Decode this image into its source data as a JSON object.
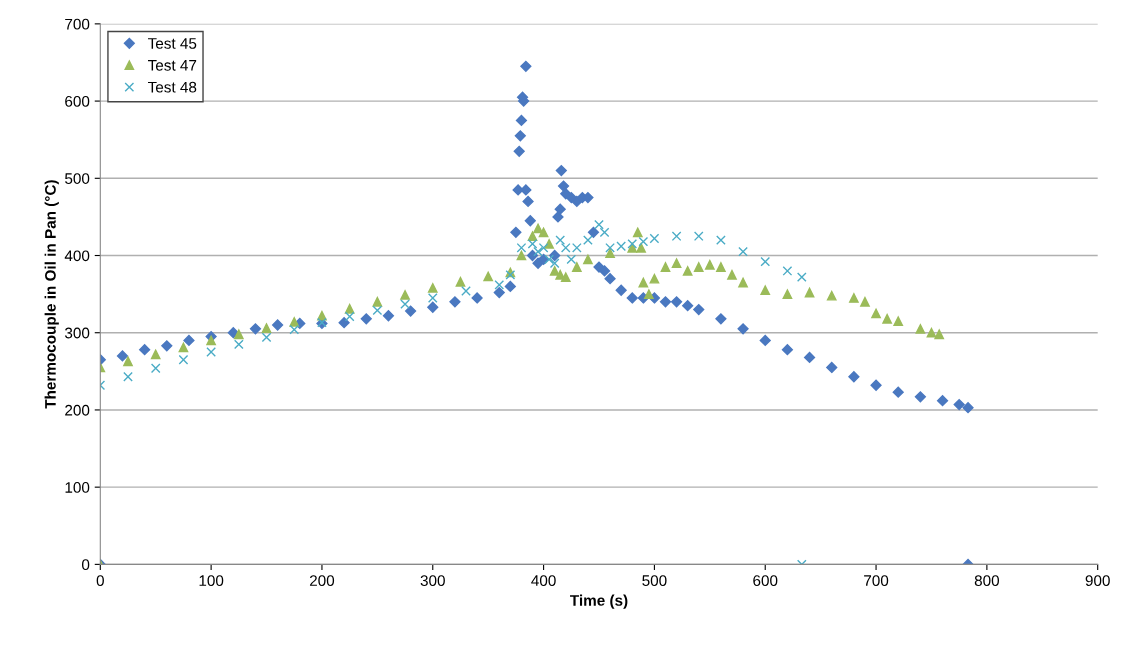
{
  "chart_data": {
    "type": "scatter",
    "xlabel": "Time (s)",
    "ylabel": "Thermocouple in Oil in Pan (°C)",
    "xlim": [
      0,
      900
    ],
    "xticks": [
      0,
      100,
      200,
      300,
      400,
      500,
      600,
      700,
      800,
      900
    ],
    "ylim": [
      0,
      700
    ],
    "yticks": [
      0,
      100,
      200,
      300,
      400,
      500,
      600,
      700
    ],
    "grid": "y",
    "legend": "top left",
    "series": [
      {
        "name": "Test 45",
        "color": "#4a78c0",
        "marker": "diamond",
        "x": [
          0,
          20,
          40,
          60,
          80,
          100,
          120,
          140,
          160,
          180,
          200,
          220,
          240,
          260,
          280,
          300,
          320,
          340,
          360,
          370,
          375,
          377,
          378,
          379,
          380,
          381,
          382,
          384,
          384,
          386,
          388,
          390,
          395,
          400,
          410,
          413,
          415,
          416,
          418,
          420,
          425,
          430,
          435,
          440,
          445,
          450,
          455,
          460,
          470,
          480,
          490,
          500,
          510,
          520,
          530,
          540,
          560,
          580,
          600,
          620,
          640,
          660,
          680,
          700,
          720,
          740,
          760,
          775,
          783,
          0,
          783
        ],
        "values": [
          265,
          270,
          278,
          283,
          290,
          295,
          300,
          305,
          310,
          312,
          312,
          313,
          318,
          322,
          328,
          333,
          340,
          345,
          352,
          360,
          430,
          485,
          535,
          555,
          575,
          605,
          600,
          645,
          485,
          470,
          445,
          400,
          390,
          395,
          400,
          450,
          460,
          510,
          490,
          480,
          475,
          470,
          475,
          475,
          430,
          385,
          380,
          370,
          355,
          345,
          345,
          345,
          340,
          340,
          335,
          330,
          318,
          305,
          290,
          278,
          268,
          255,
          243,
          232,
          223,
          217,
          212,
          207,
          203,
          0,
          0
        ]
      },
      {
        "name": "Test 47",
        "color": "#9bbb59",
        "marker": "triangle",
        "x": [
          0,
          25,
          50,
          75,
          100,
          125,
          150,
          175,
          200,
          225,
          250,
          275,
          300,
          325,
          350,
          370,
          380,
          390,
          395,
          400,
          405,
          410,
          415,
          420,
          430,
          440,
          460,
          480,
          485,
          488,
          490,
          495,
          500,
          510,
          520,
          530,
          540,
          550,
          560,
          570,
          580,
          600,
          620,
          640,
          660,
          680,
          690,
          700,
          710,
          720,
          740,
          750,
          757,
          0
        ],
        "values": [
          255,
          263,
          272,
          281,
          290,
          298,
          306,
          314,
          322,
          331,
          340,
          349,
          358,
          366,
          373,
          378,
          400,
          425,
          435,
          430,
          415,
          380,
          375,
          372,
          385,
          395,
          403,
          410,
          430,
          410,
          365,
          350,
          370,
          385,
          390,
          380,
          385,
          388,
          385,
          375,
          365,
          355,
          350,
          352,
          348,
          345,
          340,
          325,
          318,
          315,
          305,
          300,
          298,
          0
        ]
      },
      {
        "name": "Test 48",
        "color": "#4bacc6",
        "marker": "cross",
        "x": [
          0,
          25,
          50,
          75,
          100,
          125,
          150,
          175,
          200,
          225,
          250,
          275,
          300,
          330,
          360,
          370,
          380,
          390,
          395,
          400,
          405,
          410,
          415,
          420,
          425,
          430,
          440,
          450,
          455,
          460,
          470,
          480,
          490,
          500,
          520,
          540,
          560,
          580,
          600,
          620,
          633,
          633
        ],
        "values": [
          232,
          243,
          254,
          265,
          275,
          285,
          294,
          304,
          313,
          321,
          329,
          337,
          345,
          354,
          362,
          375,
          410,
          415,
          405,
          410,
          395,
          390,
          420,
          410,
          395,
          410,
          420,
          440,
          430,
          410,
          412,
          415,
          418,
          422,
          425,
          425,
          420,
          405,
          392,
          380,
          372,
          0
        ]
      }
    ]
  }
}
